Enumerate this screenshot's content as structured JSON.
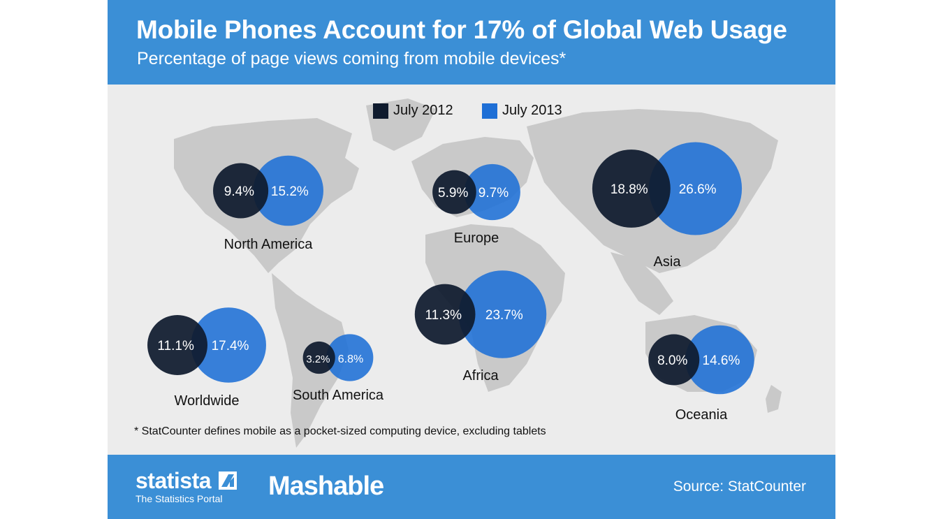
{
  "header": {
    "title": "Mobile Phones Account for 17% of Global Web Usage",
    "subtitle": "Percentage of page views coming from mobile devices*"
  },
  "legend": [
    {
      "label": "July 2012",
      "color": "#0f1b2e"
    },
    {
      "label": "July 2013",
      "color": "#1e6fd6"
    }
  ],
  "footnote": "* StatCounter defines mobile as a pocket-sized computing device, excluding tablets",
  "footer": {
    "brand_1": "statista",
    "brand_1_tagline": "The Statistics Portal",
    "brand_2": "Mashable",
    "source": "Source: StatCounter"
  },
  "chart_data": {
    "type": "bubble",
    "unit": "%",
    "series": [
      {
        "name": "July 2012",
        "color": "#0f1b2e"
      },
      {
        "name": "July 2013",
        "color": "#1e6fd6"
      }
    ],
    "regions": [
      {
        "name": "North America",
        "values": [
          9.4,
          15.2
        ],
        "labels": [
          "9.4%",
          "15.2%"
        ]
      },
      {
        "name": "Europe",
        "values": [
          5.9,
          9.7
        ],
        "labels": [
          "5.9%",
          "9.7%"
        ]
      },
      {
        "name": "Asia",
        "values": [
          18.8,
          26.6
        ],
        "labels": [
          "18.8%",
          "26.6%"
        ]
      },
      {
        "name": "Worldwide",
        "values": [
          11.1,
          17.4
        ],
        "labels": [
          "11.1%",
          "17.4%"
        ]
      },
      {
        "name": "South America",
        "values": [
          3.2,
          6.8
        ],
        "labels": [
          "3.2%",
          "6.8%"
        ]
      },
      {
        "name": "Africa",
        "values": [
          11.3,
          23.7
        ],
        "labels": [
          "11.3%",
          "23.7%"
        ]
      },
      {
        "name": "Oceania",
        "values": [
          8.0,
          14.6
        ],
        "labels": [
          "8.0%",
          "14.6%"
        ]
      }
    ]
  }
}
